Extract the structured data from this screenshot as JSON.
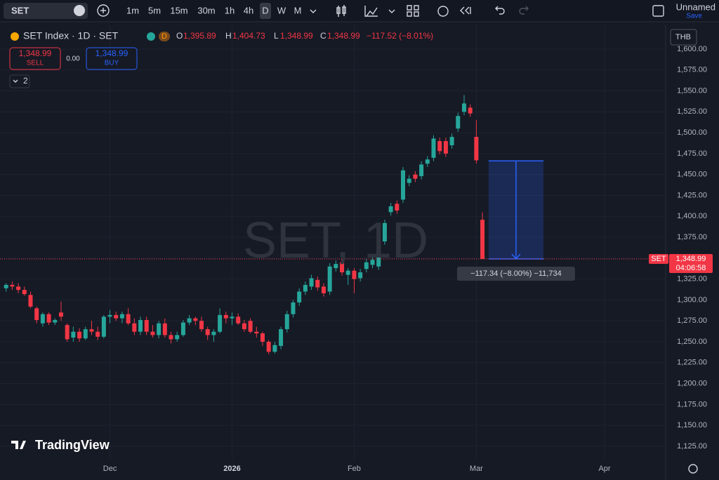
{
  "toolbar": {
    "symbol": "SET",
    "intervals": [
      "1m",
      "5m",
      "15m",
      "30m",
      "1h",
      "4h",
      "D",
      "W",
      "M"
    ],
    "active_interval": "D",
    "layout_name": "Unnamed",
    "save": "Save"
  },
  "legend": {
    "title": "SET Index · 1D · SET",
    "badge": "D",
    "o_label": "O",
    "open": "1,395.89",
    "h_label": "H",
    "high": "1,404.73",
    "l_label": "L",
    "low": "1,348.99",
    "c_label": "C",
    "close": "1,348.99",
    "change": "−117.52 (−8.01%)"
  },
  "trade": {
    "sell_price": "1,348.99",
    "sell": "SELL",
    "spread": "0.00",
    "buy_price": "1,348.99",
    "buy": "BUY",
    "indicators": "2"
  },
  "currency": "THB",
  "watermark": "SET, 1D",
  "logo": "TradingView",
  "chart_data": {
    "type": "candlestick",
    "up_color": "#26a69a",
    "down_color": "#f23645",
    "open": [
      1314,
      1318,
      1316,
      1312,
      1306,
      1290,
      1272,
      1283,
      1273,
      1285,
      1270,
      1255,
      1262,
      1254,
      1265,
      1262,
      1256,
      1280,
      1282,
      1278,
      1283,
      1272,
      1262,
      1276,
      1262,
      1258,
      1272,
      1258,
      1253,
      1258,
      1273,
      1278,
      1275,
      1265,
      1258,
      1262,
      1282,
      1278,
      1280,
      1272,
      1275,
      1262,
      1260,
      1250,
      1238,
      1245,
      1265,
      1283,
      1297,
      1310,
      1316,
      1324,
      1316,
      1310,
      1338,
      1345,
      1330,
      1335,
      1326,
      1337,
      1342,
      1340,
      1370,
      1405,
      1415,
      1420,
      1440,
      1450,
      1448,
      1463,
      1470,
      1490,
      1490,
      1485,
      1505,
      1525,
      1530,
      1495,
      1395.89
    ],
    "high": [
      1320,
      1322,
      1320,
      1316,
      1310,
      1292,
      1285,
      1285,
      1278,
      1298,
      1272,
      1268,
      1266,
      1268,
      1275,
      1268,
      1282,
      1288,
      1286,
      1286,
      1290,
      1278,
      1280,
      1280,
      1270,
      1275,
      1278,
      1262,
      1262,
      1276,
      1282,
      1280,
      1280,
      1268,
      1265,
      1290,
      1286,
      1285,
      1284,
      1276,
      1278,
      1268,
      1262,
      1252,
      1250,
      1268,
      1287,
      1300,
      1314,
      1322,
      1330,
      1328,
      1320,
      1344,
      1347,
      1349,
      1338,
      1338,
      1337,
      1349,
      1352,
      1362,
      1396,
      1416,
      1419,
      1459,
      1449,
      1454,
      1466,
      1472,
      1497,
      1494,
      1494,
      1499,
      1524,
      1545,
      1534,
      1515,
      1404.73
    ],
    "low": [
      1310,
      1312,
      1308,
      1305,
      1290,
      1272,
      1268,
      1270,
      1270,
      1275,
      1250,
      1250,
      1250,
      1252,
      1258,
      1252,
      1254,
      1272,
      1275,
      1272,
      1270,
      1258,
      1258,
      1258,
      1255,
      1254,
      1255,
      1248,
      1250,
      1256,
      1270,
      1270,
      1262,
      1252,
      1250,
      1260,
      1272,
      1270,
      1270,
      1262,
      1260,
      1255,
      1245,
      1235,
      1236,
      1241,
      1261,
      1279,
      1293,
      1306,
      1312,
      1311,
      1304,
      1306,
      1334,
      1329,
      1318,
      1308,
      1322,
      1333,
      1338,
      1336,
      1366,
      1401,
      1403,
      1416,
      1436,
      1441,
      1444,
      1459,
      1466,
      1474,
      1471,
      1481,
      1501,
      1521,
      1519,
      1463,
      1348.99
    ],
    "close": [
      1318,
      1316,
      1312,
      1307,
      1292,
      1276,
      1283,
      1273,
      1276,
      1280,
      1253,
      1262,
      1254,
      1265,
      1262,
      1256,
      1280,
      1282,
      1278,
      1283,
      1272,
      1262,
      1276,
      1262,
      1258,
      1272,
      1258,
      1253,
      1258,
      1273,
      1278,
      1275,
      1265,
      1258,
      1262,
      1282,
      1278,
      1280,
      1272,
      1265,
      1262,
      1260,
      1250,
      1238,
      1246,
      1265,
      1283,
      1297,
      1310,
      1318,
      1326,
      1315,
      1308,
      1340,
      1343,
      1333,
      1335,
      1325,
      1333,
      1345,
      1348,
      1358,
      1392,
      1412,
      1407,
      1455,
      1445,
      1445,
      1462,
      1468,
      1493,
      1478,
      1475,
      1495,
      1520,
      1535,
      1523,
      1467,
      1348.99
    ],
    "xlim": [
      -1,
      108
    ],
    "xticks": [
      {
        "value": 17,
        "label": "Dec"
      },
      {
        "value": 37,
        "label": "2026"
      },
      {
        "value": 57,
        "label": "Feb"
      },
      {
        "value": 77,
        "label": "Mar"
      },
      {
        "value": 98,
        "label": "Apr"
      }
    ],
    "ylim": [
      1109,
      1628.5
    ],
    "yticks": [
      {
        "value": 1125,
        "label": "1,125.00"
      },
      {
        "value": 1150,
        "label": "1,150.00"
      },
      {
        "value": 1175,
        "label": "1,175.00"
      },
      {
        "value": 1200,
        "label": "1,200.00"
      },
      {
        "value": 1225,
        "label": "1,225.00"
      },
      {
        "value": 1250,
        "label": "1,250.00"
      },
      {
        "value": 1275,
        "label": "1,275.00"
      },
      {
        "value": 1300,
        "label": "1,300.00"
      },
      {
        "value": 1325,
        "label": "1,325.00"
      },
      {
        "value": 1350,
        "label": "1,350.00"
      },
      {
        "value": 1375,
        "label": "1,375.00"
      },
      {
        "value": 1400,
        "label": "1,400.00"
      },
      {
        "value": 1425,
        "label": "1,425.00"
      },
      {
        "value": 1450,
        "label": "1,450.00"
      },
      {
        "value": 1475,
        "label": "1,475.00"
      },
      {
        "value": 1500,
        "label": "1,500.00"
      },
      {
        "value": 1525,
        "label": "1,525.00"
      },
      {
        "value": 1550,
        "label": "1,550.00"
      },
      {
        "value": 1575,
        "label": "1,575.00"
      },
      {
        "value": 1600,
        "label": "1,600.00"
      }
    ],
    "grid": true,
    "last_price": {
      "value": 1348.99,
      "label": "1,348.99"
    },
    "last_price_symbol": "SET",
    "countdown": "04:06:58",
    "measure": {
      "from": 1466.33,
      "to": 1348.99,
      "label": "−117.34 (−8.00%) −11,734"
    }
  }
}
